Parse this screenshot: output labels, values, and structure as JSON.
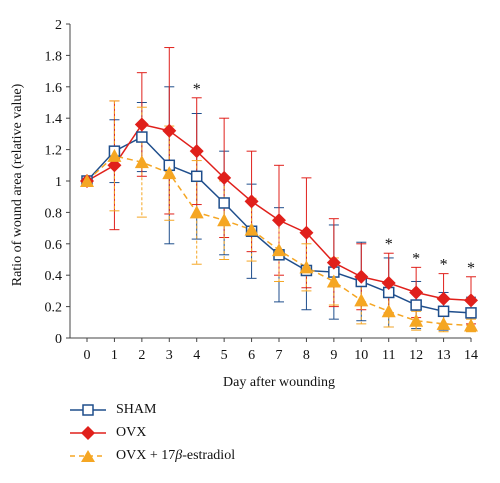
{
  "chart_data": {
    "type": "line",
    "xlabel": "Day after wounding",
    "ylabel": "Ratio of wound area (relative value)",
    "x": [
      0,
      1,
      2,
      3,
      4,
      5,
      6,
      7,
      8,
      9,
      10,
      11,
      12,
      13,
      14
    ],
    "xlim": [
      0,
      14
    ],
    "ylim": [
      0,
      2
    ],
    "yticks": [
      "0",
      "0.2",
      "0.4",
      "0.6",
      "0.8",
      "1",
      "1.2",
      "1.4",
      "1.6",
      "1.8",
      "2"
    ],
    "xticks": [
      "0",
      "1",
      "2",
      "3",
      "4",
      "5",
      "6",
      "7",
      "8",
      "9",
      "10",
      "11",
      "12",
      "13",
      "14"
    ],
    "grid": false,
    "legend_position": "bottom-left",
    "significance_marker": "*",
    "significant_days": [
      4,
      11,
      12,
      13,
      14
    ],
    "series": [
      {
        "name": "SHAM",
        "color": "#1f4e8c",
        "marker": "open-square",
        "line_style": "solid",
        "values": [
          1.0,
          1.19,
          1.28,
          1.1,
          1.03,
          0.86,
          0.68,
          0.53,
          0.43,
          0.42,
          0.36,
          0.29,
          0.21,
          0.17,
          0.16
        ],
        "error": [
          0.0,
          0.2,
          0.22,
          0.5,
          0.4,
          0.33,
          0.3,
          0.3,
          0.25,
          0.3,
          0.25,
          0.22,
          0.15,
          0.12,
          0.1
        ]
      },
      {
        "name": "OVX",
        "color": "#e0201b",
        "marker": "filled-diamond",
        "line_style": "solid",
        "values": [
          1.0,
          1.1,
          1.36,
          1.32,
          1.19,
          1.02,
          0.87,
          0.75,
          0.67,
          0.48,
          0.39,
          0.35,
          0.29,
          0.25,
          0.24
        ],
        "error": [
          0.0,
          0.41,
          0.33,
          0.53,
          0.34,
          0.38,
          0.32,
          0.35,
          0.35,
          0.28,
          0.21,
          0.19,
          0.16,
          0.16,
          0.15
        ]
      },
      {
        "name": "OVX + 17β-estradiol",
        "color": "#f5a623",
        "marker": "filled-triangle",
        "line_style": "dashed",
        "values": [
          1.0,
          1.16,
          1.12,
          1.05,
          0.8,
          0.75,
          0.69,
          0.56,
          0.45,
          0.36,
          0.24,
          0.17,
          0.11,
          0.09,
          0.08
        ],
        "error": [
          0.0,
          0.35,
          0.35,
          0.3,
          0.33,
          0.25,
          0.2,
          0.2,
          0.15,
          0.15,
          0.15,
          0.1,
          0.06,
          0.05,
          0.04
        ]
      }
    ]
  },
  "legend": {
    "items": [
      {
        "prefix": "SHAM",
        "beta": "",
        "suffix": ""
      },
      {
        "prefix": "OVX",
        "beta": "",
        "suffix": ""
      },
      {
        "prefix": "OVX + 17",
        "beta": "β",
        "suffix": "-estradiol"
      }
    ]
  }
}
